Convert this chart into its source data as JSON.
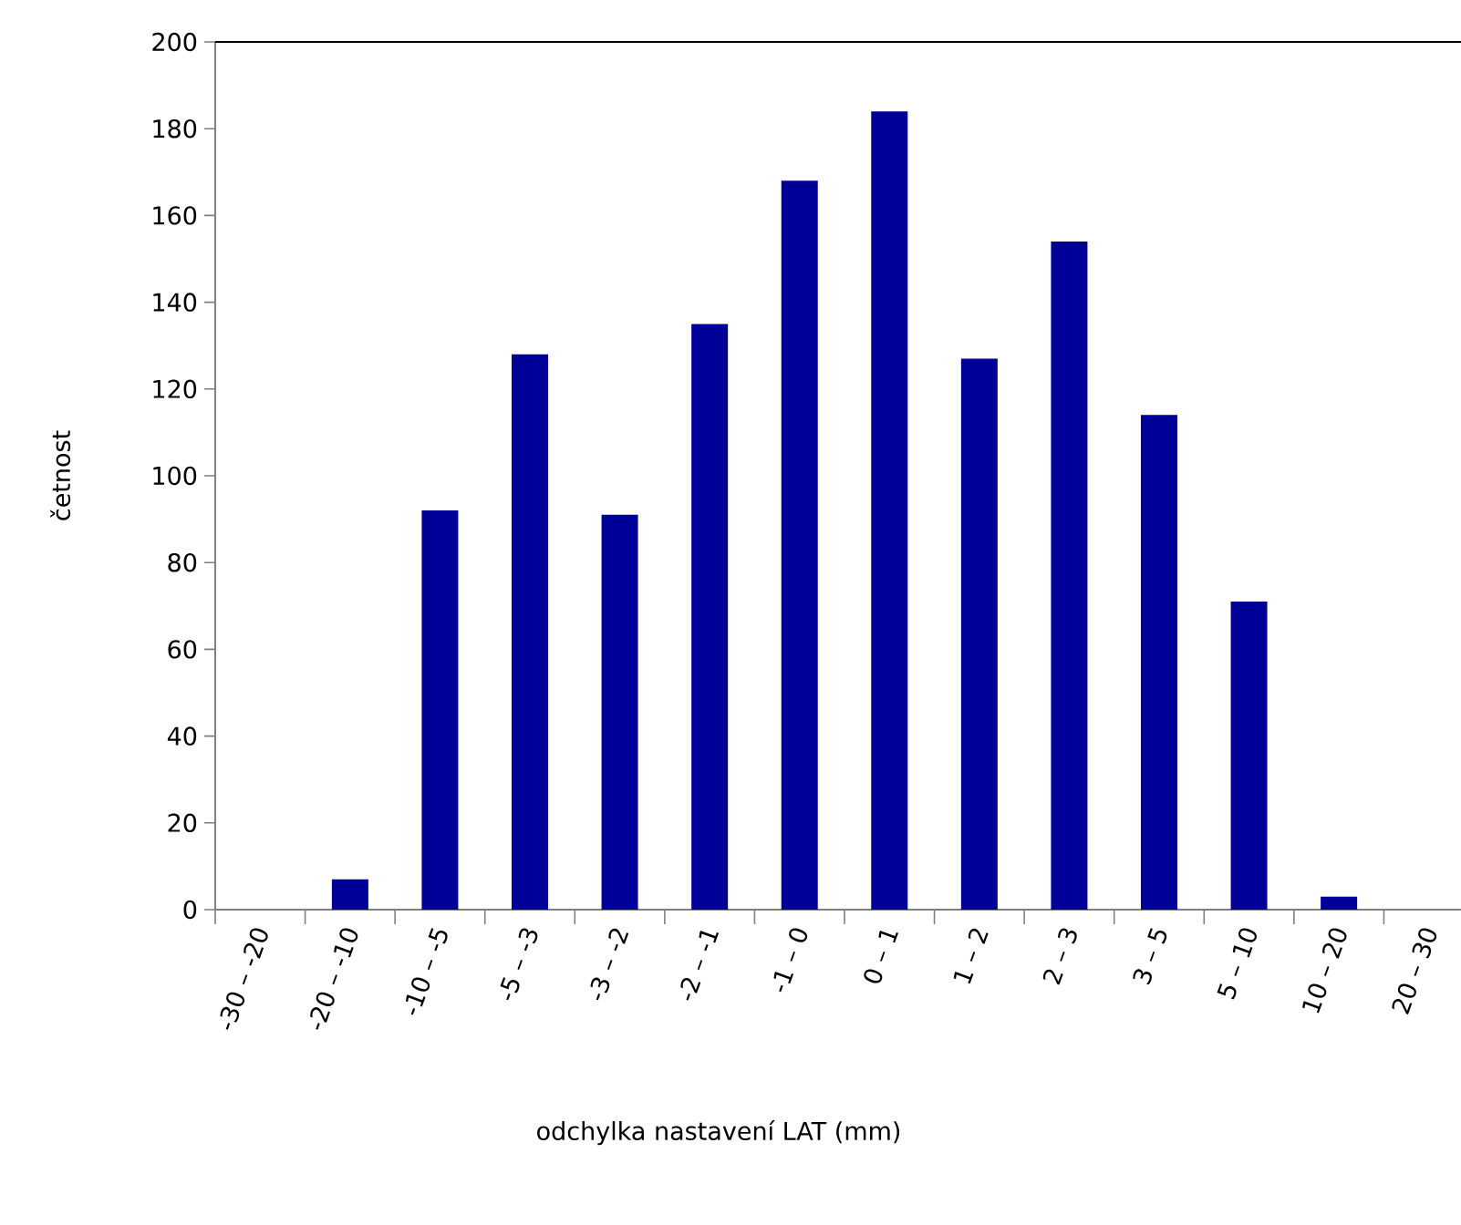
{
  "chart_data": {
    "type": "bar",
    "xlabel": "odchylka nastavení LAT (mm)",
    "ylabel": "četnost",
    "categories": [
      "-30 – -20",
      "-20 – -10",
      "-10 – -5",
      "-5 – -3",
      "-3 – -2",
      "-2 – -1",
      "-1 – 0",
      "0 – 1",
      "1 – 2",
      "2 – 3",
      "3 – 5",
      "5 – 10",
      "10 – 20",
      "20 – 30"
    ],
    "values": [
      0,
      7,
      92,
      128,
      91,
      135,
      168,
      184,
      127,
      154,
      114,
      71,
      3,
      0
    ],
    "color": "#000099",
    "ylim": [
      0,
      200
    ],
    "yticks": [
      0,
      20,
      40,
      60,
      80,
      100,
      120,
      140,
      160,
      180,
      200
    ],
    "grid": false
  }
}
